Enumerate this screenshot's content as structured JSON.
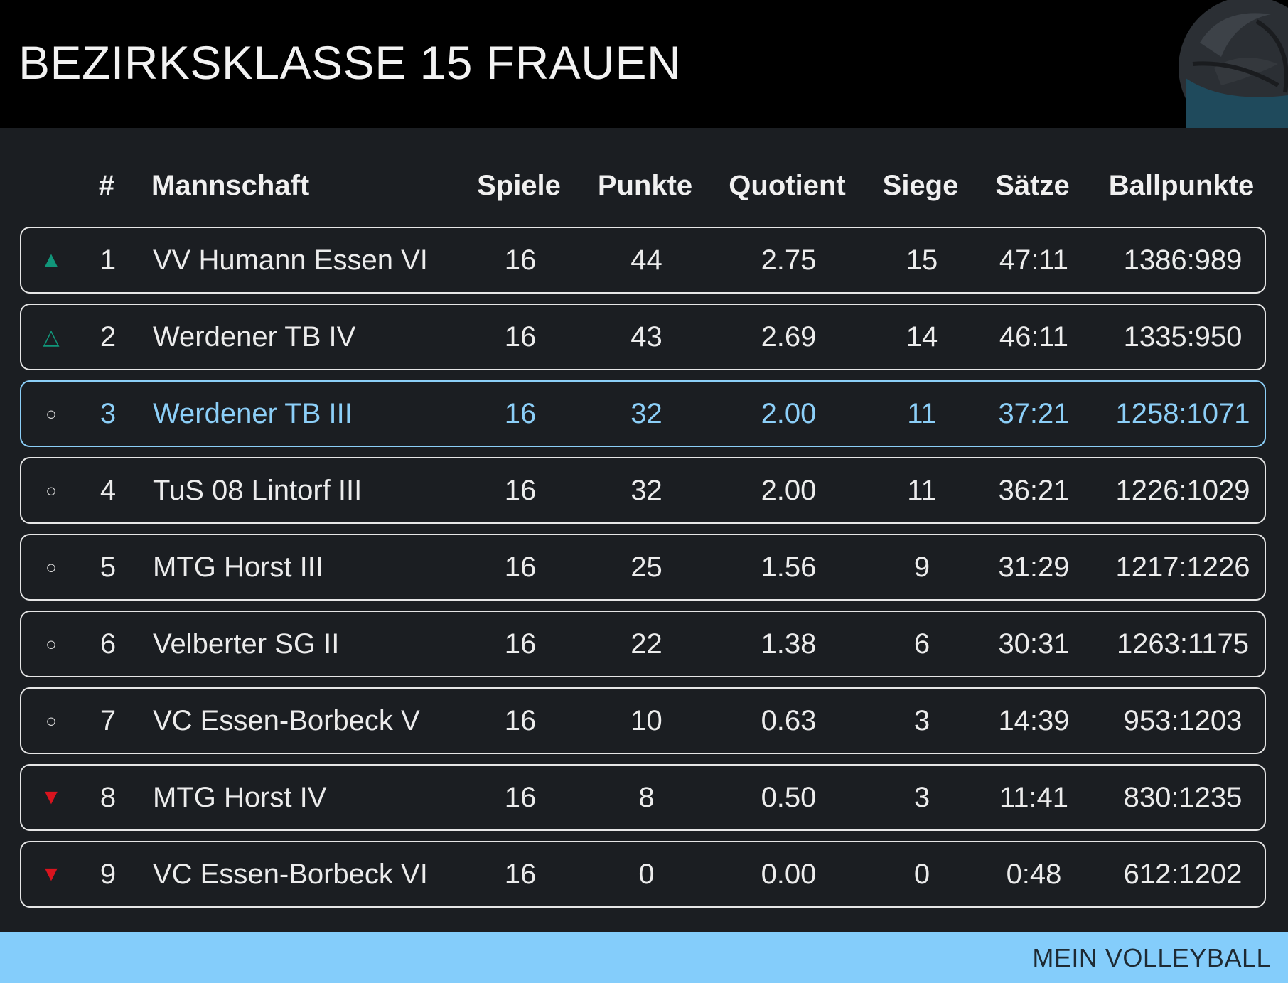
{
  "title": "BEZIRKSKLASSE 15 FRAUEN",
  "footer_label": "MEIN VOLLEYBALL",
  "colors": {
    "header_bg": "#000000",
    "page_bg": "#1b1e22",
    "accent": "#84cdfb",
    "promotion": "#11967a",
    "relegation": "#d9141e"
  },
  "columns": {
    "rank": "#",
    "team": "Mannschaft",
    "games": "Spiele",
    "points": "Punkte",
    "quotient": "Quotient",
    "wins": "Siege",
    "sets": "Sätze",
    "ballpoints": "Ballpunkte"
  },
  "rows": [
    {
      "indicator": "▲",
      "indicator_type": "up-strong",
      "rank": "1",
      "team": "VV Humann Essen VI",
      "games": "16",
      "points": "44",
      "quotient": "2.75",
      "wins": "15",
      "sets": "47:11",
      "ballpoints": "1386:989",
      "highlight": false
    },
    {
      "indicator": "△",
      "indicator_type": "up-weak",
      "rank": "2",
      "team": "Werdener TB IV",
      "games": "16",
      "points": "43",
      "quotient": "2.69",
      "wins": "14",
      "sets": "46:11",
      "ballpoints": "1335:950",
      "highlight": false
    },
    {
      "indicator": "○",
      "indicator_type": "neutral",
      "rank": "3",
      "team": "Werdener TB III",
      "games": "16",
      "points": "32",
      "quotient": "2.00",
      "wins": "11",
      "sets": "37:21",
      "ballpoints": "1258:1071",
      "highlight": true
    },
    {
      "indicator": "○",
      "indicator_type": "neutral",
      "rank": "4",
      "team": "TuS 08 Lintorf III",
      "games": "16",
      "points": "32",
      "quotient": "2.00",
      "wins": "11",
      "sets": "36:21",
      "ballpoints": "1226:1029",
      "highlight": false
    },
    {
      "indicator": "○",
      "indicator_type": "neutral",
      "rank": "5",
      "team": "MTG Horst III",
      "games": "16",
      "points": "25",
      "quotient": "1.56",
      "wins": "9",
      "sets": "31:29",
      "ballpoints": "1217:1226",
      "highlight": false
    },
    {
      "indicator": "○",
      "indicator_type": "neutral",
      "rank": "6",
      "team": "Velberter SG II",
      "games": "16",
      "points": "22",
      "quotient": "1.38",
      "wins": "6",
      "sets": "30:31",
      "ballpoints": "1263:1175",
      "highlight": false
    },
    {
      "indicator": "○",
      "indicator_type": "neutral",
      "rank": "7",
      "team": "VC Essen-Borbeck V",
      "games": "16",
      "points": "10",
      "quotient": "0.63",
      "wins": "3",
      "sets": "14:39",
      "ballpoints": "953:1203",
      "highlight": false
    },
    {
      "indicator": "▼",
      "indicator_type": "down",
      "rank": "8",
      "team": "MTG Horst IV",
      "games": "16",
      "points": "8",
      "quotient": "0.50",
      "wins": "3",
      "sets": "11:41",
      "ballpoints": "830:1235",
      "highlight": false
    },
    {
      "indicator": "▼",
      "indicator_type": "down",
      "rank": "9",
      "team": "VC Essen-Borbeck VI",
      "games": "16",
      "points": "0",
      "quotient": "0.00",
      "wins": "0",
      "sets": "0:48",
      "ballpoints": "612:1202",
      "highlight": false
    }
  ]
}
